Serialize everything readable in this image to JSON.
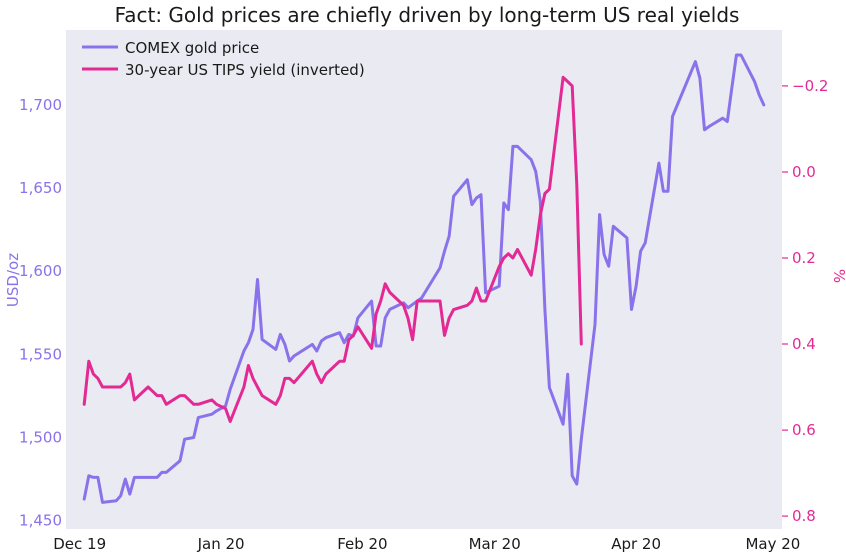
{
  "chart_data": {
    "type": "line",
    "title": "Fact: Gold prices are chiefly driven by long-term US real yields",
    "xlabel": "",
    "x_ticks": [
      "Dec 19",
      "Jan 20",
      "Feb 20",
      "Mar 20",
      "Apr 20",
      "May 20"
    ],
    "grid": false,
    "legend_position": "top-left",
    "colors": {
      "plot_background": "#eaeaf2",
      "gold": "#8a72ea",
      "tips": "#e32a94"
    },
    "y_left": {
      "label": "USD/oz",
      "ticks": [
        "1,450",
        "1,500",
        "1,550",
        "1,600",
        "1,650",
        "1,700"
      ],
      "range": [
        1445,
        1745
      ]
    },
    "y_right": {
      "label": "%",
      "inverted": true,
      "ticks": [
        "−0.2",
        "0.0",
        "0.2",
        "0.4",
        "0.6",
        "0.8"
      ],
      "range": [
        -0.33,
        0.83
      ]
    },
    "series": [
      {
        "name": "COMEX gold price",
        "axis": "left",
        "points": [
          [
            "2019-12-02",
            1463
          ],
          [
            "2019-12-03",
            1477
          ],
          [
            "2019-12-04",
            1476
          ],
          [
            "2019-12-05",
            1476
          ],
          [
            "2019-12-06",
            1461
          ],
          [
            "2019-12-09",
            1462
          ],
          [
            "2019-12-10",
            1465
          ],
          [
            "2019-12-11",
            1475
          ],
          [
            "2019-12-12",
            1466
          ],
          [
            "2019-12-13",
            1476
          ],
          [
            "2019-12-16",
            1476
          ],
          [
            "2019-12-17",
            1476
          ],
          [
            "2019-12-18",
            1476
          ],
          [
            "2019-12-19",
            1479
          ],
          [
            "2019-12-20",
            1479
          ],
          [
            "2019-12-23",
            1486
          ],
          [
            "2019-12-24",
            1499
          ],
          [
            "2019-12-26",
            1500
          ],
          [
            "2019-12-27",
            1512
          ],
          [
            "2019-12-30",
            1514
          ],
          [
            "2019-12-31",
            1516
          ],
          [
            "2020-01-02",
            1519
          ],
          [
            "2020-01-03",
            1529
          ],
          [
            "2020-01-06",
            1552
          ],
          [
            "2020-01-07",
            1557
          ],
          [
            "2020-01-08",
            1565
          ],
          [
            "2020-01-09",
            1595
          ],
          [
            "2020-01-10",
            1559
          ],
          [
            "2020-01-13",
            1553
          ],
          [
            "2020-01-14",
            1562
          ],
          [
            "2020-01-15",
            1556
          ],
          [
            "2020-01-16",
            1546
          ],
          [
            "2020-01-17",
            1549
          ],
          [
            "2020-01-21",
            1556
          ],
          [
            "2020-01-22",
            1552
          ],
          [
            "2020-01-23",
            1558
          ],
          [
            "2020-01-24",
            1560
          ],
          [
            "2020-01-27",
            1563
          ],
          [
            "2020-01-28",
            1557
          ],
          [
            "2020-01-29",
            1562
          ],
          [
            "2020-01-30",
            1561
          ],
          [
            "2020-01-31",
            1572
          ],
          [
            "2020-02-03",
            1582
          ],
          [
            "2020-02-04",
            1555
          ],
          [
            "2020-02-05",
            1555
          ],
          [
            "2020-02-06",
            1572
          ],
          [
            "2020-02-07",
            1577
          ],
          [
            "2020-02-10",
            1581
          ],
          [
            "2020-02-11",
            1578
          ],
          [
            "2020-02-12",
            1580
          ],
          [
            "2020-02-13",
            1582
          ],
          [
            "2020-02-14",
            1584
          ],
          [
            "2020-02-18",
            1602
          ],
          [
            "2020-02-19",
            1612
          ],
          [
            "2020-02-20",
            1621
          ],
          [
            "2020-02-21",
            1645
          ],
          [
            "2020-02-24",
            1655
          ],
          [
            "2020-02-25",
            1640
          ],
          [
            "2020-02-26",
            1644
          ],
          [
            "2020-02-27",
            1646
          ],
          [
            "2020-02-28",
            1587
          ],
          [
            "2020-03-02",
            1591
          ],
          [
            "2020-03-03",
            1641
          ],
          [
            "2020-03-04",
            1637
          ],
          [
            "2020-03-05",
            1675
          ],
          [
            "2020-03-06",
            1675
          ],
          [
            "2020-03-09",
            1667
          ],
          [
            "2020-03-10",
            1660
          ],
          [
            "2020-03-11",
            1642
          ],
          [
            "2020-03-12",
            1577
          ],
          [
            "2020-03-13",
            1530
          ],
          [
            "2020-03-16",
            1508
          ],
          [
            "2020-03-17",
            1538
          ],
          [
            "2020-03-18",
            1477
          ],
          [
            "2020-03-19",
            1472
          ],
          [
            "2020-03-20",
            1499
          ],
          [
            "2020-03-23",
            1568
          ],
          [
            "2020-03-24",
            1634
          ],
          [
            "2020-03-25",
            1610
          ],
          [
            "2020-03-26",
            1603
          ],
          [
            "2020-03-27",
            1627
          ],
          [
            "2020-03-30",
            1620
          ],
          [
            "2020-03-31",
            1577
          ],
          [
            "2020-04-01",
            1591
          ],
          [
            "2020-04-02",
            1612
          ],
          [
            "2020-04-03",
            1617
          ],
          [
            "2020-04-06",
            1665
          ],
          [
            "2020-04-07",
            1648
          ],
          [
            "2020-04-08",
            1648
          ],
          [
            "2020-04-09",
            1693
          ],
          [
            "2020-04-14",
            1726
          ],
          [
            "2020-04-15",
            1716
          ],
          [
            "2020-04-16",
            1685
          ],
          [
            "2020-04-17",
            1687
          ],
          [
            "2020-04-20",
            1692
          ],
          [
            "2020-04-21",
            1690
          ],
          [
            "2020-04-22",
            1710
          ],
          [
            "2020-04-23",
            1730
          ],
          [
            "2020-04-24",
            1730
          ],
          [
            "2020-04-27",
            1714
          ],
          [
            "2020-04-28",
            1706
          ],
          [
            "2020-04-29",
            1700
          ]
        ]
      },
      {
        "name": "30-year US TIPS yield (inverted)",
        "axis": "right",
        "points": [
          [
            "2019-12-02",
            0.54
          ],
          [
            "2019-12-03",
            0.44
          ],
          [
            "2019-12-04",
            0.47
          ],
          [
            "2019-12-05",
            0.48
          ],
          [
            "2019-12-06",
            0.5
          ],
          [
            "2019-12-09",
            0.5
          ],
          [
            "2019-12-10",
            0.5
          ],
          [
            "2019-12-11",
            0.49
          ],
          [
            "2019-12-12",
            0.47
          ],
          [
            "2019-12-13",
            0.53
          ],
          [
            "2019-12-16",
            0.5
          ],
          [
            "2019-12-17",
            0.51
          ],
          [
            "2019-12-18",
            0.52
          ],
          [
            "2019-12-19",
            0.52
          ],
          [
            "2019-12-20",
            0.54
          ],
          [
            "2019-12-23",
            0.52
          ],
          [
            "2019-12-24",
            0.52
          ],
          [
            "2019-12-26",
            0.54
          ],
          [
            "2019-12-27",
            0.54
          ],
          [
            "2019-12-30",
            0.53
          ],
          [
            "2019-12-31",
            0.54
          ],
          [
            "2020-01-02",
            0.55
          ],
          [
            "2020-01-03",
            0.58
          ],
          [
            "2020-01-06",
            0.5
          ],
          [
            "2020-01-07",
            0.45
          ],
          [
            "2020-01-08",
            0.48
          ],
          [
            "2020-01-09",
            0.5
          ],
          [
            "2020-01-10",
            0.52
          ],
          [
            "2020-01-13",
            0.54
          ],
          [
            "2020-01-14",
            0.52
          ],
          [
            "2020-01-15",
            0.48
          ],
          [
            "2020-01-16",
            0.48
          ],
          [
            "2020-01-17",
            0.49
          ],
          [
            "2020-01-21",
            0.44
          ],
          [
            "2020-01-22",
            0.47
          ],
          [
            "2020-01-23",
            0.49
          ],
          [
            "2020-01-24",
            0.47
          ],
          [
            "2020-01-27",
            0.44
          ],
          [
            "2020-01-28",
            0.44
          ],
          [
            "2020-01-29",
            0.39
          ],
          [
            "2020-01-30",
            0.38
          ],
          [
            "2020-01-31",
            0.36
          ],
          [
            "2020-02-03",
            0.41
          ],
          [
            "2020-02-04",
            0.33
          ],
          [
            "2020-02-05",
            0.3
          ],
          [
            "2020-02-06",
            0.26
          ],
          [
            "2020-02-07",
            0.28
          ],
          [
            "2020-02-10",
            0.31
          ],
          [
            "2020-02-11",
            0.34
          ],
          [
            "2020-02-12",
            0.39
          ],
          [
            "2020-02-13",
            0.3
          ],
          [
            "2020-02-14",
            0.3
          ],
          [
            "2020-02-18",
            0.3
          ],
          [
            "2020-02-19",
            0.38
          ],
          [
            "2020-02-20",
            0.34
          ],
          [
            "2020-02-21",
            0.32
          ],
          [
            "2020-02-24",
            0.31
          ],
          [
            "2020-02-25",
            0.3
          ],
          [
            "2020-02-26",
            0.27
          ],
          [
            "2020-02-27",
            0.3
          ],
          [
            "2020-02-28",
            0.3
          ],
          [
            "2020-03-02",
            0.22
          ],
          [
            "2020-03-03",
            0.2
          ],
          [
            "2020-03-04",
            0.19
          ],
          [
            "2020-03-05",
            0.2
          ],
          [
            "2020-03-06",
            0.18
          ],
          [
            "2020-03-09",
            0.24
          ],
          [
            "2020-03-10",
            0.18
          ],
          [
            "2020-03-11",
            0.1
          ],
          [
            "2020-03-12",
            0.05
          ],
          [
            "2020-03-13",
            0.04
          ],
          [
            "2020-03-16",
            -0.22
          ],
          [
            "2020-03-17",
            -0.21
          ],
          [
            "2020-03-18",
            -0.2
          ],
          [
            "2020-03-19",
            0.03
          ],
          [
            "2020-03-20",
            0.4
          ]
        ]
      }
    ]
  }
}
